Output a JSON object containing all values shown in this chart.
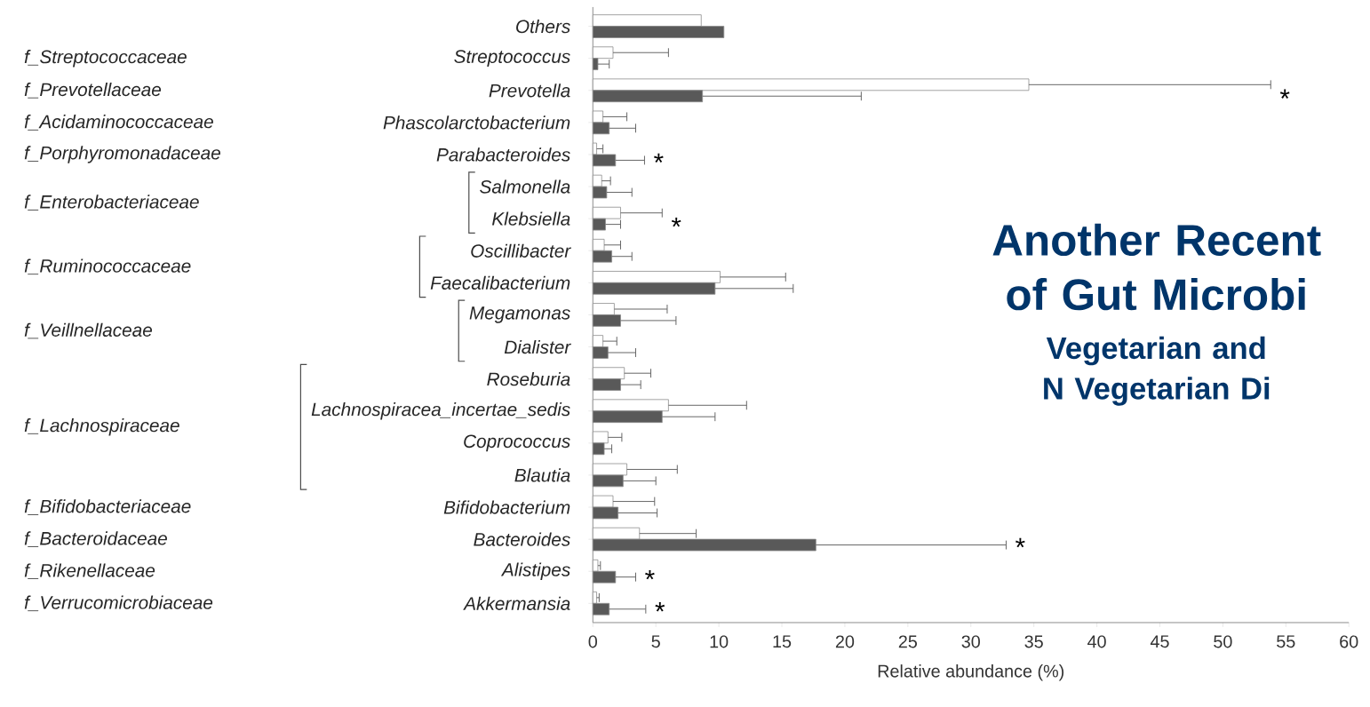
{
  "chart_data": {
    "type": "bar",
    "orientation": "horizontal",
    "title": "Another Recent of Gut Microbi",
    "subtitle": "Vegetarian and N Vegetarian Di",
    "xlabel": "Relative abundance (%)",
    "categories": [
      "Others",
      "Streptococcus",
      "Prevotella",
      "Phascolarctobacterium",
      "Parabacteroides",
      "Salmonella",
      "Klebsiella",
      "Oscillibacter",
      "Faecalibacterium",
      "Megamonas",
      "Dialister",
      "Roseburia",
      "Lachnospiracea_incertae_sedis",
      "Coprococcus",
      "Blautia",
      "Bifidobacterium",
      "Bacteroides",
      "Alistipes",
      "Akkermansia"
    ],
    "series": [
      {
        "color": "#ffffff",
        "values": [
          8.6,
          1.6,
          34.6,
          0.8,
          0.3,
          0.7,
          2.2,
          0.9,
          10.1,
          1.7,
          0.8,
          2.5,
          6.0,
          1.2,
          2.7,
          1.6,
          3.7,
          0.4,
          0.3
        ],
        "errors": [
          null,
          [
            1.6,
            6.0
          ],
          [
            34.6,
            53.8
          ],
          [
            0.8,
            2.7
          ],
          [
            0.3,
            0.8
          ],
          [
            0.7,
            1.4
          ],
          [
            2.2,
            5.5
          ],
          [
            0.9,
            2.2
          ],
          [
            10.1,
            15.3
          ],
          [
            1.7,
            5.9
          ],
          [
            0.8,
            1.9
          ],
          [
            2.5,
            4.6
          ],
          [
            6.0,
            12.2
          ],
          [
            1.2,
            2.3
          ],
          [
            2.7,
            6.7
          ],
          [
            1.6,
            4.9
          ],
          [
            3.7,
            8.2
          ],
          [
            0.4,
            0.6
          ],
          [
            0.3,
            0.5
          ]
        ]
      },
      {
        "color": "#595959",
        "values": [
          10.4,
          0.4,
          8.7,
          1.3,
          1.8,
          1.1,
          1.0,
          1.5,
          9.7,
          2.2,
          1.2,
          2.2,
          5.5,
          0.9,
          2.4,
          2.0,
          17.7,
          1.8,
          1.3
        ],
        "errors": [
          null,
          [
            0.4,
            1.3
          ],
          [
            8.7,
            21.3
          ],
          [
            1.3,
            3.4
          ],
          [
            1.8,
            4.1
          ],
          [
            1.1,
            3.1
          ],
          [
            1.0,
            2.2
          ],
          [
            1.5,
            3.1
          ],
          [
            9.7,
            15.9
          ],
          [
            2.2,
            6.6
          ],
          [
            1.2,
            3.4
          ],
          [
            2.2,
            3.8
          ],
          [
            5.5,
            9.7
          ],
          [
            0.9,
            1.5
          ],
          [
            2.4,
            5.0
          ],
          [
            2.0,
            5.1
          ],
          [
            17.7,
            32.8
          ],
          [
            1.8,
            3.4
          ],
          [
            1.3,
            4.2
          ]
        ]
      }
    ],
    "xlim": [
      0,
      60
    ],
    "xticks": [
      0,
      5,
      10,
      15,
      20,
      25,
      30,
      35,
      40,
      45,
      50,
      55,
      60
    ],
    "grid": false,
    "annotations": [
      "f_Streptococcaceae",
      "f_Prevotellaceae",
      "f_Acidaminococcaceae",
      "f_Porphyromonadaceae",
      "f_Enterobacteriaceae",
      "f_Ruminococcaceae",
      "f_Veillnellaceae",
      "f_Lachnospiraceae",
      "f_Bifidobacteriaceae",
      "f_Bacteroidaceae",
      "f_Rikenellaceae",
      "f_Verrucomicrobiaceae",
      {
        "text": "*",
        "x": 53.8,
        "y": "Prevotella"
      },
      {
        "text": "*",
        "x": 4.1,
        "y": "Parabacteroides"
      },
      {
        "text": "*",
        "x": 5.5,
        "y": "Klebsiella"
      },
      {
        "text": "*",
        "x": 32.8,
        "y": "Bacteroides"
      },
      {
        "text": "*",
        "x": 3.4,
        "y": "Alistipes"
      },
      {
        "text": "*",
        "x": 4.2,
        "y": "Akkermansia"
      }
    ]
  }
}
